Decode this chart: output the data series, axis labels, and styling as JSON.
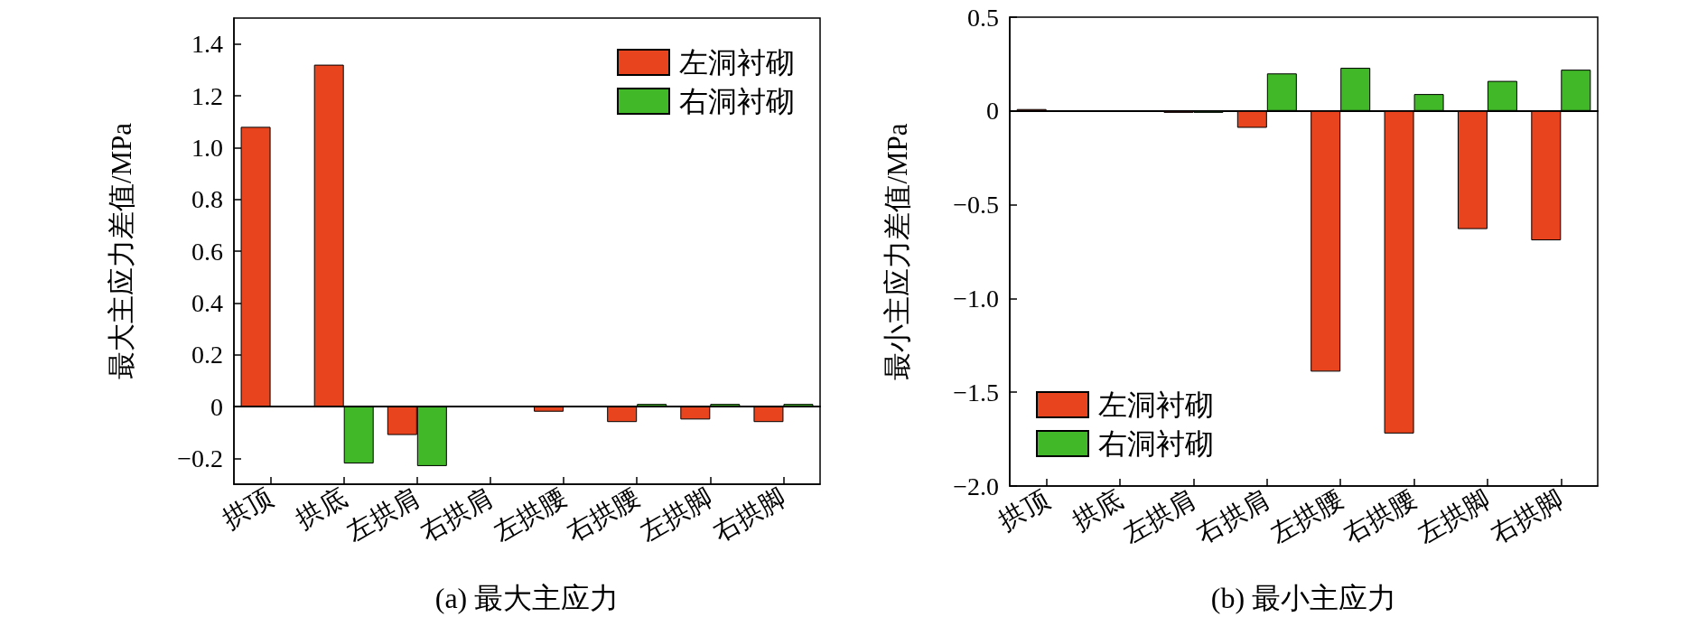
{
  "chart_data": [
    {
      "type": "bar",
      "title": "(a) 最大主应力",
      "ylabel": "最大主应力差值/MPa",
      "categories": [
        "拱顶",
        "拱底",
        "左拱肩",
        "右拱肩",
        "左拱腰",
        "右拱腰",
        "左拱脚",
        "右拱脚"
      ],
      "series": [
        {
          "name": "左洞衬砌",
          "color": "#e8441e",
          "values": [
            1.08,
            1.32,
            -0.11,
            null,
            -0.02,
            -0.06,
            -0.05,
            -0.06
          ]
        },
        {
          "name": "右洞衬砌",
          "color": "#40b828",
          "values": [
            null,
            -0.22,
            -0.23,
            null,
            null,
            0.01,
            0.01,
            0.01
          ]
        }
      ],
      "ylim": [
        -0.3,
        1.5
      ],
      "yticks": [
        {
          "value": -0.2,
          "label": "−0.2"
        },
        0,
        0.2,
        0.4,
        0.6,
        0.8,
        {
          "value": 1,
          "label": "1.0"
        },
        1.2,
        1.4
      ],
      "legend": "top right"
    },
    {
      "type": "bar",
      "title": "(b) 最小主应力",
      "ylabel": "最小主应力差值/MPa",
      "categories": [
        "拱顶",
        "拱底",
        "左拱肩",
        "右拱肩",
        "左拱腰",
        "右拱腰",
        "左拱脚",
        "右拱脚"
      ],
      "series": [
        {
          "name": "左洞衬砌",
          "color": "#e8441e",
          "values": [
            0.01,
            null,
            -0.01,
            -0.09,
            -1.39,
            -1.72,
            -0.63,
            -0.69
          ]
        },
        {
          "name": "右洞衬砌",
          "color": "#40b828",
          "values": [
            null,
            null,
            -0.01,
            0.2,
            0.23,
            0.09,
            0.16,
            0.22
          ]
        }
      ],
      "ylim": [
        -2,
        0.5
      ],
      "yticks": [
        {
          "value": -2,
          "label": "−2.0"
        },
        {
          "value": -1.5,
          "label": "−1.5"
        },
        {
          "value": -1,
          "label": "−1.0"
        },
        {
          "value": -0.5,
          "label": "−0.5"
        },
        0,
        0.5
      ],
      "legend": "bottom left"
    }
  ]
}
